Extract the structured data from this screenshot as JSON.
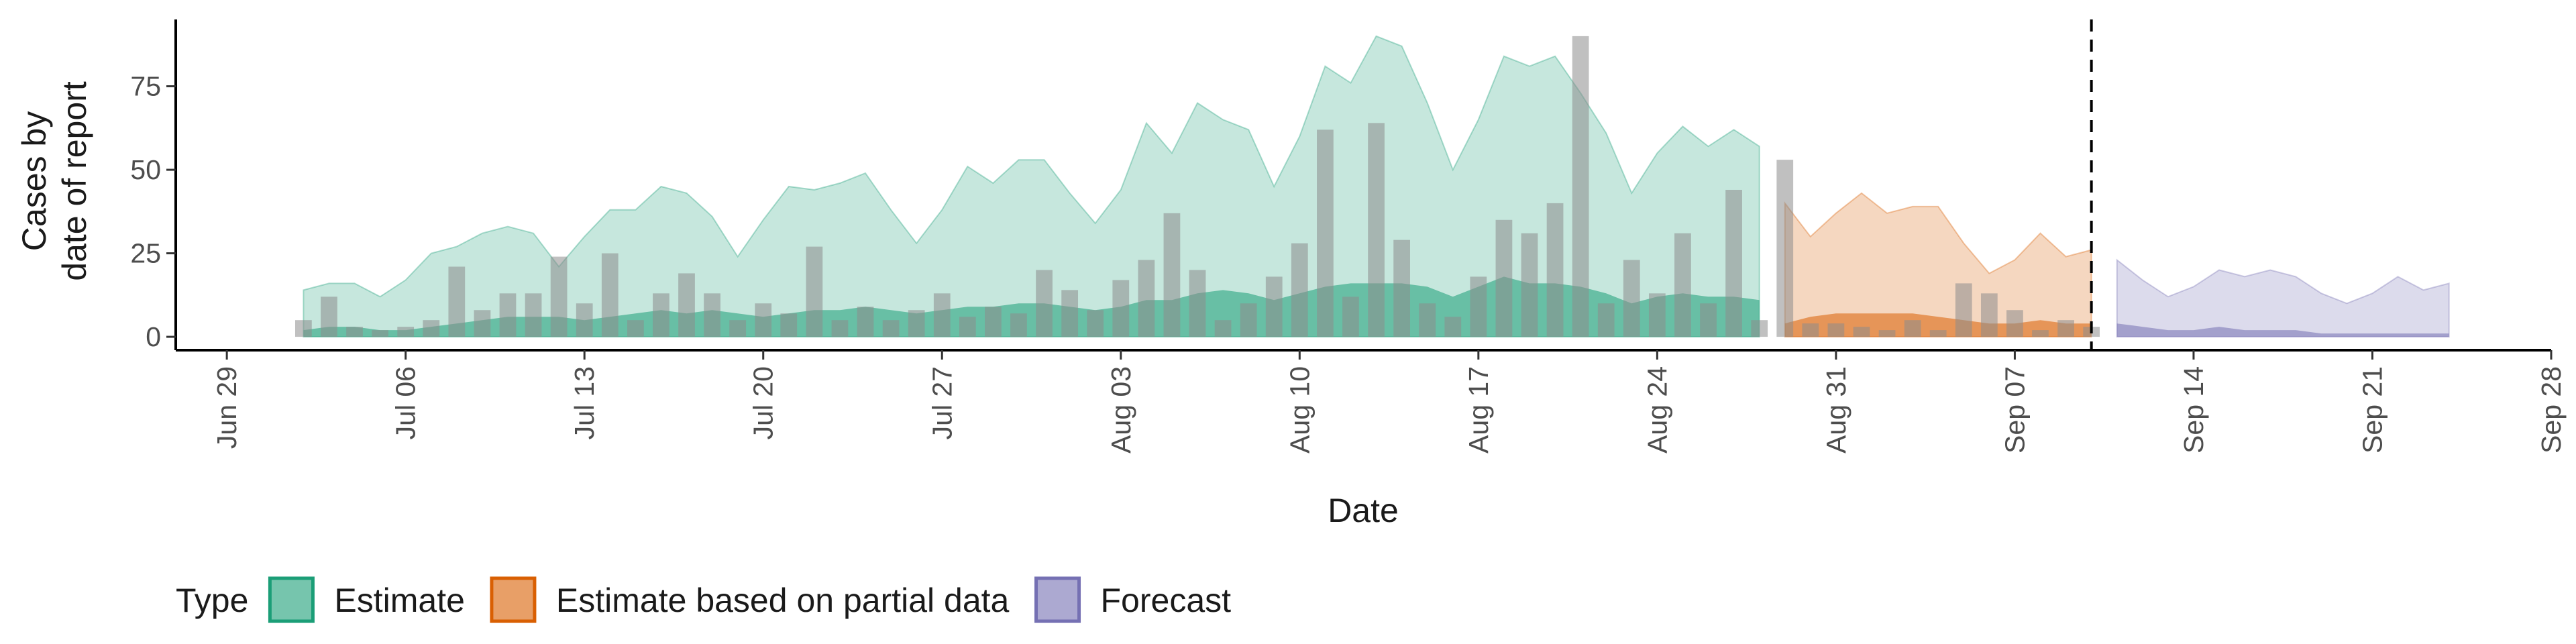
{
  "chart_data": {
    "type": "nowcast",
    "xlabel": "Date",
    "ylabel": [
      "Cases by",
      "date of report"
    ],
    "legend_title": "Type",
    "xlim": [
      "Jun 27",
      "Sep 28"
    ],
    "xticks": [
      "Jun 29",
      "Jul 06",
      "Jul 13",
      "Jul 20",
      "Jul 27",
      "Aug 03",
      "Aug 10",
      "Aug 17",
      "Aug 24",
      "Aug 31",
      "Sep 07",
      "Sep 14",
      "Sep 21",
      "Sep 28"
    ],
    "ylim": [
      -4,
      95
    ],
    "yticks": [
      0,
      25,
      50,
      75
    ],
    "vline": "Sep 10",
    "bars": {
      "color": "#8c8c8c",
      "x": [
        "Jul 02",
        "Jul 03",
        "Jul 04",
        "Jul 05",
        "Jul 06",
        "Jul 07",
        "Jul 08",
        "Jul 09",
        "Jul 10",
        "Jul 11",
        "Jul 12",
        "Jul 13",
        "Jul 14",
        "Jul 15",
        "Jul 16",
        "Jul 17",
        "Jul 18",
        "Jul 19",
        "Jul 20",
        "Jul 21",
        "Jul 22",
        "Jul 23",
        "Jul 24",
        "Jul 25",
        "Jul 26",
        "Jul 27",
        "Jul 28",
        "Jul 29",
        "Jul 30",
        "Jul 31",
        "Aug 01",
        "Aug 02",
        "Aug 03",
        "Aug 04",
        "Aug 05",
        "Aug 06",
        "Aug 07",
        "Aug 08",
        "Aug 09",
        "Aug 10",
        "Aug 11",
        "Aug 12",
        "Aug 13",
        "Aug 14",
        "Aug 15",
        "Aug 16",
        "Aug 17",
        "Aug 18",
        "Aug 19",
        "Aug 20",
        "Aug 21",
        "Aug 22",
        "Aug 23",
        "Aug 24",
        "Aug 25",
        "Aug 26",
        "Aug 27",
        "Aug 28",
        "Aug 29",
        "Aug 30",
        "Aug 31",
        "Sep 01",
        "Sep 02",
        "Sep 03",
        "Sep 04",
        "Sep 05",
        "Sep 06",
        "Sep 07",
        "Sep 08",
        "Sep 09",
        "Sep 10"
      ],
      "values": [
        5,
        12,
        3,
        2,
        3,
        5,
        21,
        8,
        13,
        13,
        24,
        10,
        25,
        5,
        13,
        19,
        13,
        5,
        10,
        7,
        27,
        5,
        9,
        5,
        8,
        13,
        6,
        9,
        7,
        20,
        14,
        8,
        17,
        23,
        37,
        20,
        5,
        10,
        18,
        28,
        62,
        12,
        64,
        29,
        10,
        6,
        18,
        35,
        31,
        40,
        90,
        10,
        23,
        13,
        31,
        10,
        44,
        5,
        53,
        4,
        4,
        3,
        2,
        5,
        2,
        16,
        13,
        8,
        2,
        5,
        3
      ]
    },
    "series": [
      {
        "name": "Estimate",
        "color": "#1b9e77",
        "x": [
          "Jul 02",
          "Jul 03",
          "Jul 04",
          "Jul 05",
          "Jul 06",
          "Jul 07",
          "Jul 08",
          "Jul 09",
          "Jul 10",
          "Jul 11",
          "Jul 12",
          "Jul 13",
          "Jul 14",
          "Jul 15",
          "Jul 16",
          "Jul 17",
          "Jul 18",
          "Jul 19",
          "Jul 20",
          "Jul 21",
          "Jul 22",
          "Jul 23",
          "Jul 24",
          "Jul 25",
          "Jul 26",
          "Jul 27",
          "Jul 28",
          "Jul 29",
          "Jul 30",
          "Jul 31",
          "Aug 01",
          "Aug 02",
          "Aug 03",
          "Aug 04",
          "Aug 05",
          "Aug 06",
          "Aug 07",
          "Aug 08",
          "Aug 09",
          "Aug 10",
          "Aug 11",
          "Aug 12",
          "Aug 13",
          "Aug 14",
          "Aug 15",
          "Aug 16",
          "Aug 17",
          "Aug 18",
          "Aug 19",
          "Aug 20",
          "Aug 21",
          "Aug 22",
          "Aug 23",
          "Aug 24",
          "Aug 25",
          "Aug 26",
          "Aug 27",
          "Aug 28"
        ],
        "upper": [
          14,
          16,
          16,
          12,
          17,
          25,
          27,
          31,
          33,
          31,
          21,
          30,
          38,
          38,
          45,
          43,
          36,
          24,
          35,
          45,
          44,
          46,
          49,
          38,
          28,
          38,
          51,
          46,
          53,
          53,
          43,
          34,
          44,
          64,
          55,
          70,
          65,
          62,
          45,
          60,
          81,
          76,
          90,
          87,
          70,
          50,
          65,
          84,
          81,
          84,
          73,
          61,
          43,
          55,
          63,
          57,
          62,
          57
        ],
        "inner": [
          2,
          3,
          3,
          2,
          2,
          3,
          4,
          5,
          6,
          6,
          6,
          5,
          6,
          7,
          8,
          7,
          8,
          7,
          6,
          7,
          8,
          8,
          9,
          8,
          7,
          8,
          9,
          9,
          10,
          10,
          9,
          8,
          9,
          11,
          11,
          13,
          14,
          13,
          11,
          13,
          15,
          16,
          16,
          16,
          15,
          12,
          15,
          18,
          16,
          16,
          15,
          13,
          10,
          12,
          13,
          12,
          12,
          11
        ]
      },
      {
        "name": "Estimate based on partial data",
        "color": "#d95f02",
        "x": [
          "Aug 29",
          "Aug 30",
          "Aug 31",
          "Sep 01",
          "Sep 02",
          "Sep 03",
          "Sep 04",
          "Sep 05",
          "Sep 06",
          "Sep 07",
          "Sep 08",
          "Sep 09",
          "Sep 10"
        ],
        "upper": [
          40,
          30,
          37,
          43,
          37,
          39,
          39,
          28,
          19,
          23,
          31,
          24,
          26
        ],
        "inner": [
          4,
          6,
          7,
          7,
          7,
          7,
          6,
          5,
          4,
          4,
          5,
          4,
          4
        ]
      },
      {
        "name": "Forecast",
        "color": "#7570b3",
        "x": [
          "Sep 11",
          "Sep 12",
          "Sep 13",
          "Sep 14",
          "Sep 15",
          "Sep 16",
          "Sep 17",
          "Sep 18",
          "Sep 19",
          "Sep 20",
          "Sep 21",
          "Sep 22",
          "Sep 23",
          "Sep 24"
        ],
        "upper": [
          23,
          17,
          12,
          15,
          20,
          18,
          20,
          18,
          13,
          10,
          13,
          18,
          14,
          16
        ],
        "inner": [
          4,
          3,
          2,
          2,
          3,
          2,
          2,
          2,
          1,
          1,
          1,
          1,
          1,
          1
        ]
      }
    ]
  }
}
